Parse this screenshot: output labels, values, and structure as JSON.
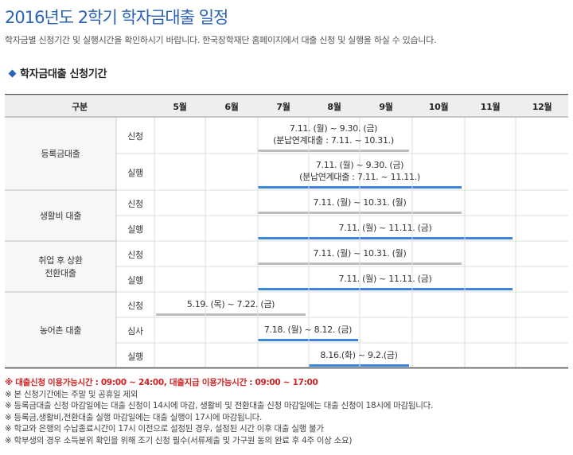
{
  "page": {
    "title": "2016년도 2학기 학자금대출 일정",
    "intro": "학자금별 신청기간 및 실행시간을 확인하시기 바랍니다.  한국장학재단 홈페이지에서 대출 신청 및 실행을 하실 수 있습니다.",
    "section_title": "학자금대출 신청기간"
  },
  "table": {
    "header_category": "구분",
    "months": [
      "5월",
      "6월",
      "7월",
      "8월",
      "9월",
      "10월",
      "11월",
      "12월"
    ],
    "groups": [
      {
        "name": "등록금대출",
        "rows": [
          {
            "label": "신청",
            "lines": [
              "7.11. (월) ~ 9.30. (금)",
              "(분납연계대출 : 7.11. ~ 10.31.)"
            ],
            "bar": "gray"
          },
          {
            "label": "실행",
            "lines": [
              "7.11. (월) ~ 9.30. (금)",
              "(분납연계대출 : 7.11. ~ 11.11.)"
            ],
            "bar": "blue"
          }
        ]
      },
      {
        "name": "생활비 대출",
        "rows": [
          {
            "label": "신청",
            "lines": [
              "7.11. (월) ~ 10.31. (월)"
            ],
            "bar": "gray"
          },
          {
            "label": "실행",
            "lines": [
              "7.11. (월) ~ 11.11. (금)"
            ],
            "bar": "blue"
          }
        ]
      },
      {
        "name": "취업 후 상환 전환대출",
        "name_lines": [
          "취업 후 상환",
          "전환대출"
        ],
        "rows": [
          {
            "label": "신청",
            "lines": [
              "7.11. (월) ~ 10.31. (월)"
            ],
            "bar": "gray"
          },
          {
            "label": "실행",
            "lines": [
              "7.11. (월) ~ 11.11. (금)"
            ],
            "bar": "blue"
          }
        ]
      },
      {
        "name": "농어촌 대출",
        "rows": [
          {
            "label": "신청",
            "lines": [
              "5.19. (목) ~ 7.22. (금)"
            ],
            "bar": "gray"
          },
          {
            "label": "심사",
            "lines": [
              "7.18. (월) ~ 8.12. (금)"
            ],
            "bar": "blue"
          },
          {
            "label": "실행",
            "lines": [
              "8.16.(화) ~ 9.2.(금)"
            ],
            "bar": "blue"
          }
        ]
      }
    ]
  },
  "notes": {
    "highlight": "※ 대출신청 이용가능시간 : 09:00 ~ 24:00,  대출지급 이용가능시간 : 09:00 ~ 17:00",
    "items": [
      "※ 본 신청기간에는 주말 및 공휴일 제외",
      "※ 등록금대출 신청 마감일에는 대출 신청이 14시에 마감, 생활비 및 전환대출 신청 마감일에는 대출 신청이 18시에 마감됩니다.",
      "※ 등록금,생활비,전환대출 실행 마감일에는 대출 실행이 17시에 마감됩니다.",
      "※ 학교와 은행의 수납종료시간이 17시 이전으로 설정된 경우, 설정된 시간 이후 대출 실행 불가",
      "※ 학부생의 경우 소득분위 확인을 위해 조기 신청 필수(서류제출 및 가구원 동의 완료 후 4주 이상 소요)"
    ]
  },
  "colors": {
    "title": "#2a62b8",
    "bar_gray": "#bdbdbd",
    "bar_blue": "#3b86d8",
    "header_bg": "#eeeeee",
    "note_red": "#d02020"
  }
}
